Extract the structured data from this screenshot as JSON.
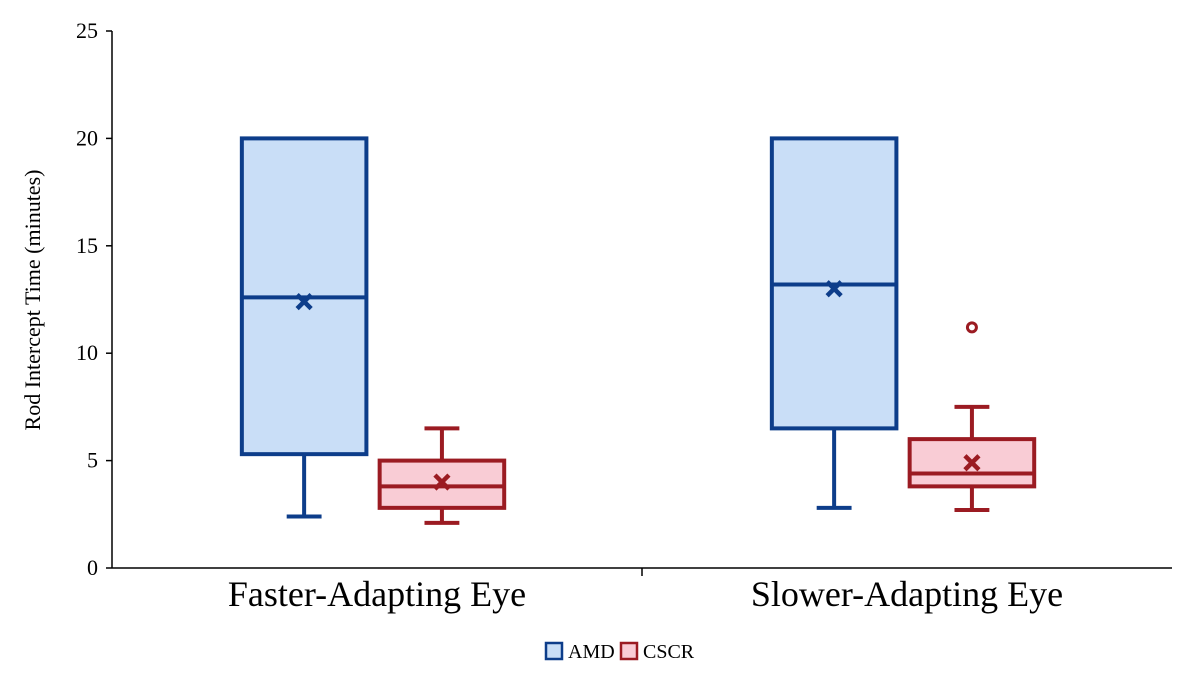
{
  "chart_data": {
    "type": "boxplot",
    "title": "",
    "xlabel": "",
    "ylabel": "Rod Intercept Time (minutes)",
    "ylim": [
      0,
      25
    ],
    "yticks": [
      0,
      5,
      10,
      15,
      20,
      25
    ],
    "categories": [
      "Faster-Adapting Eye",
      "Slower-Adapting Eye"
    ],
    "legend": {
      "placement": "bottom-center"
    },
    "series": [
      {
        "name": "AMD",
        "stroke": "#0d3d8a",
        "fill": "#c9def7",
        "boxes": [
          {
            "category": "Faster-Adapting Eye",
            "whisker_low": 2.4,
            "q1": 5.3,
            "median": 12.6,
            "q3": 20,
            "whisker_high": 20,
            "mean": 12.4,
            "outliers": []
          },
          {
            "category": "Slower-Adapting Eye",
            "whisker_low": 2.8,
            "q1": 6.5,
            "median": 13.2,
            "q3": 20,
            "whisker_high": 20,
            "mean": 13.0,
            "outliers": []
          }
        ]
      },
      {
        "name": "CSCR",
        "stroke": "#9b1b22",
        "fill": "#f9ccd5",
        "boxes": [
          {
            "category": "Faster-Adapting Eye",
            "whisker_low": 2.1,
            "q1": 2.8,
            "median": 3.8,
            "q3": 5.0,
            "whisker_high": 6.5,
            "mean": 4.0,
            "outliers": []
          },
          {
            "category": "Slower-Adapting Eye",
            "whisker_low": 2.7,
            "q1": 3.8,
            "median": 4.4,
            "q3": 6.0,
            "whisker_high": 7.5,
            "mean": 4.9,
            "outliers": [
              11.2
            ]
          }
        ]
      }
    ]
  }
}
